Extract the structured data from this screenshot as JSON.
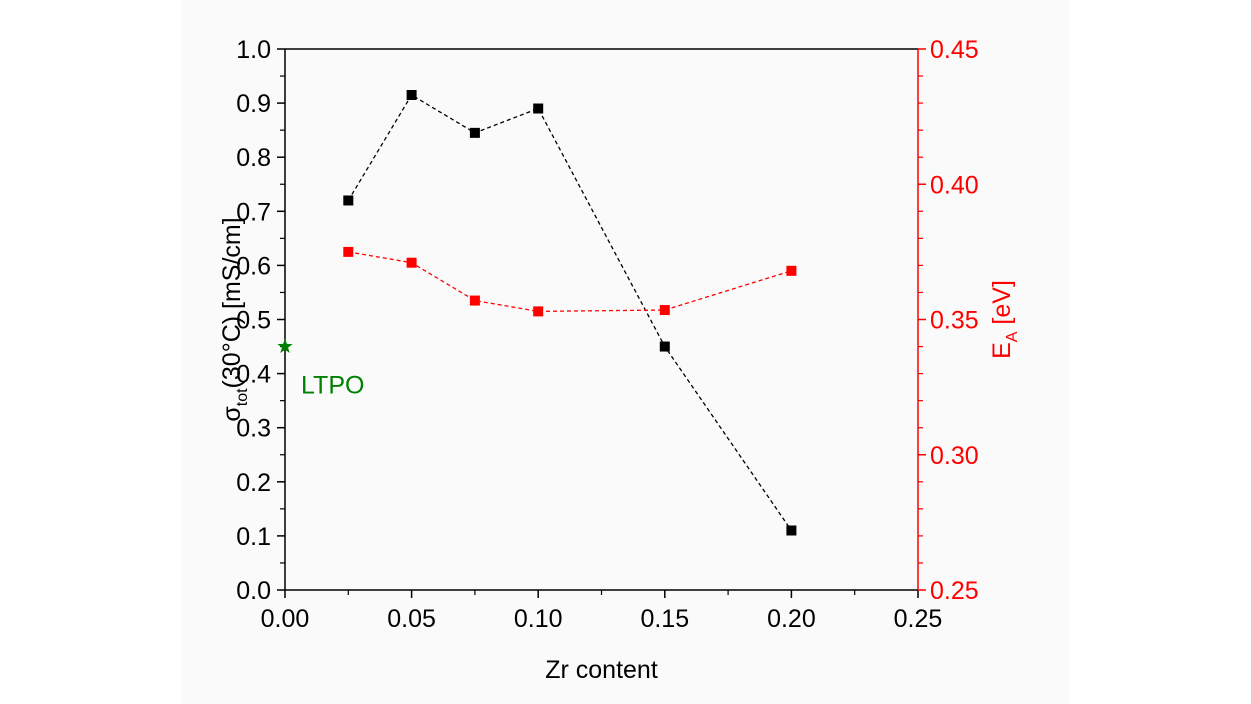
{
  "chart_data": {
    "type": "scatter",
    "title": "",
    "xlabel": "Zr content",
    "ylabel": "σ",
    "ylabel_subscript": "tot",
    "ylabel_suffix": "(30°C) [mS/cm]",
    "y2label": "E",
    "y2label_subscript": "A",
    "y2label_suffix": " [eV]",
    "xlim": [
      0.0,
      0.25
    ],
    "ylim": [
      0.0,
      1.0
    ],
    "y2lim": [
      0.25,
      0.45
    ],
    "x_ticks": [
      "0.00",
      "0.05",
      "0.10",
      "0.15",
      "0.20",
      "0.25"
    ],
    "y_ticks": [
      "0.0",
      "0.1",
      "0.2",
      "0.3",
      "0.4",
      "0.5",
      "0.6",
      "0.7",
      "0.8",
      "0.9",
      "1.0"
    ],
    "y2_ticks": [
      "0.25",
      "0.30",
      "0.35",
      "0.40",
      "0.45"
    ],
    "grid": false,
    "series": [
      {
        "axis": "left",
        "color": "#000000",
        "marker": "square",
        "line": "dashed",
        "x": [
          0.025,
          0.05,
          0.075,
          0.1,
          0.15,
          0.2
        ],
        "values": [
          0.72,
          0.915,
          0.845,
          0.89,
          0.45,
          0.11
        ]
      },
      {
        "axis": "right",
        "color": "#ff0000",
        "marker": "square",
        "line": "dashed",
        "x": [
          0.025,
          0.05,
          0.075,
          0.1,
          0.15,
          0.2
        ],
        "values": [
          0.375,
          0.371,
          0.357,
          0.353,
          0.3535,
          0.368
        ]
      }
    ],
    "annotations": [
      {
        "label": "LTPO",
        "marker": "star",
        "color": "#008000",
        "x": 0.0,
        "y": 0.45,
        "axis": "left"
      }
    ]
  }
}
